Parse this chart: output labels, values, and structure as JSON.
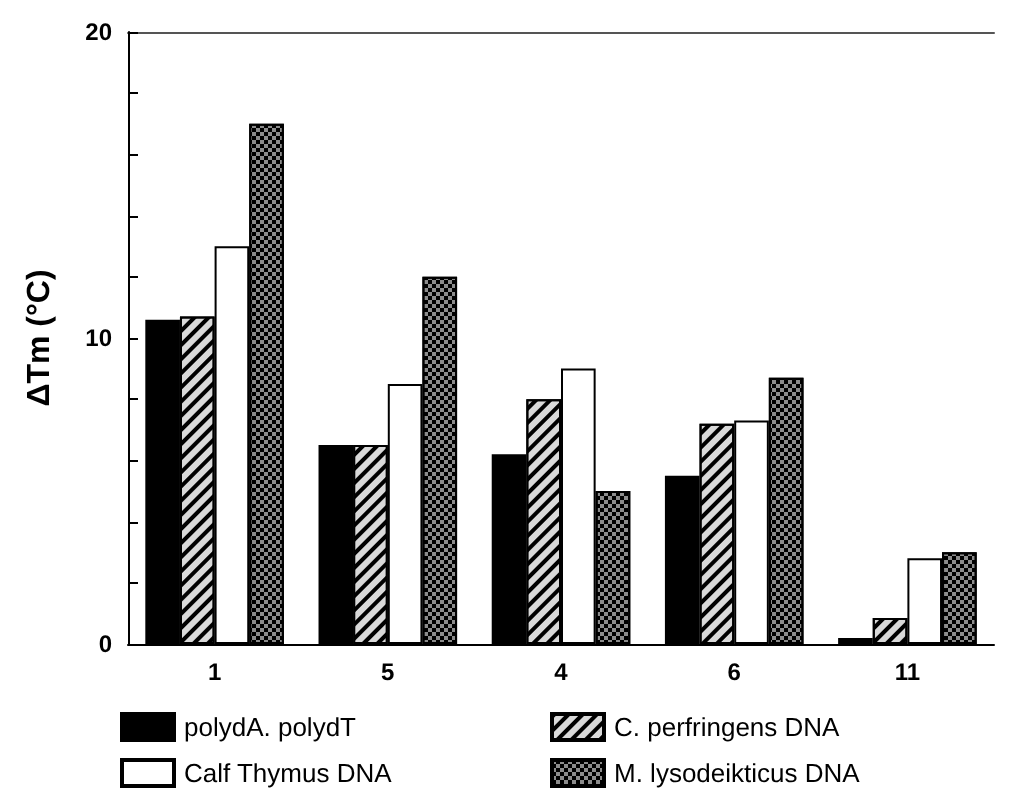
{
  "chart_data": {
    "type": "bar",
    "ylabel": "ΔTm (°C)",
    "categories": [
      "1",
      "5",
      "4",
      "6",
      "11"
    ],
    "series": [
      {
        "name": "polydA. polydT",
        "color": "#000000",
        "values": [
          10.6,
          6.5,
          6.2,
          5.5,
          0.2
        ]
      },
      {
        "name": "C. perfringens DNA",
        "color": "#d9d9d9",
        "values": [
          10.7,
          6.5,
          8.0,
          7.2,
          0.85
        ]
      },
      {
        "name": "Calf Thymus DNA",
        "color": "#ffffff",
        "values": [
          13.0,
          8.5,
          9.0,
          7.3,
          2.8
        ]
      },
      {
        "name": "M. lysodeikticus DNA",
        "color": "#8c8c8c",
        "values": [
          17.0,
          12.0,
          5.0,
          8.7,
          3.0
        ]
      }
    ],
    "ylim": [
      0,
      20
    ],
    "yticks": [
      0,
      {
        "value": 2,
        "label": null
      },
      {
        "value": 4,
        "label": null
      },
      {
        "value": 6,
        "label": null
      },
      {
        "value": 8,
        "label": null
      },
      10,
      {
        "value": 12,
        "label": null
      },
      {
        "value": 14,
        "label": null
      },
      {
        "value": 16,
        "label": null
      },
      {
        "value": 18,
        "label": null
      },
      20
    ],
    "grid": false,
    "legend": "bottom"
  }
}
